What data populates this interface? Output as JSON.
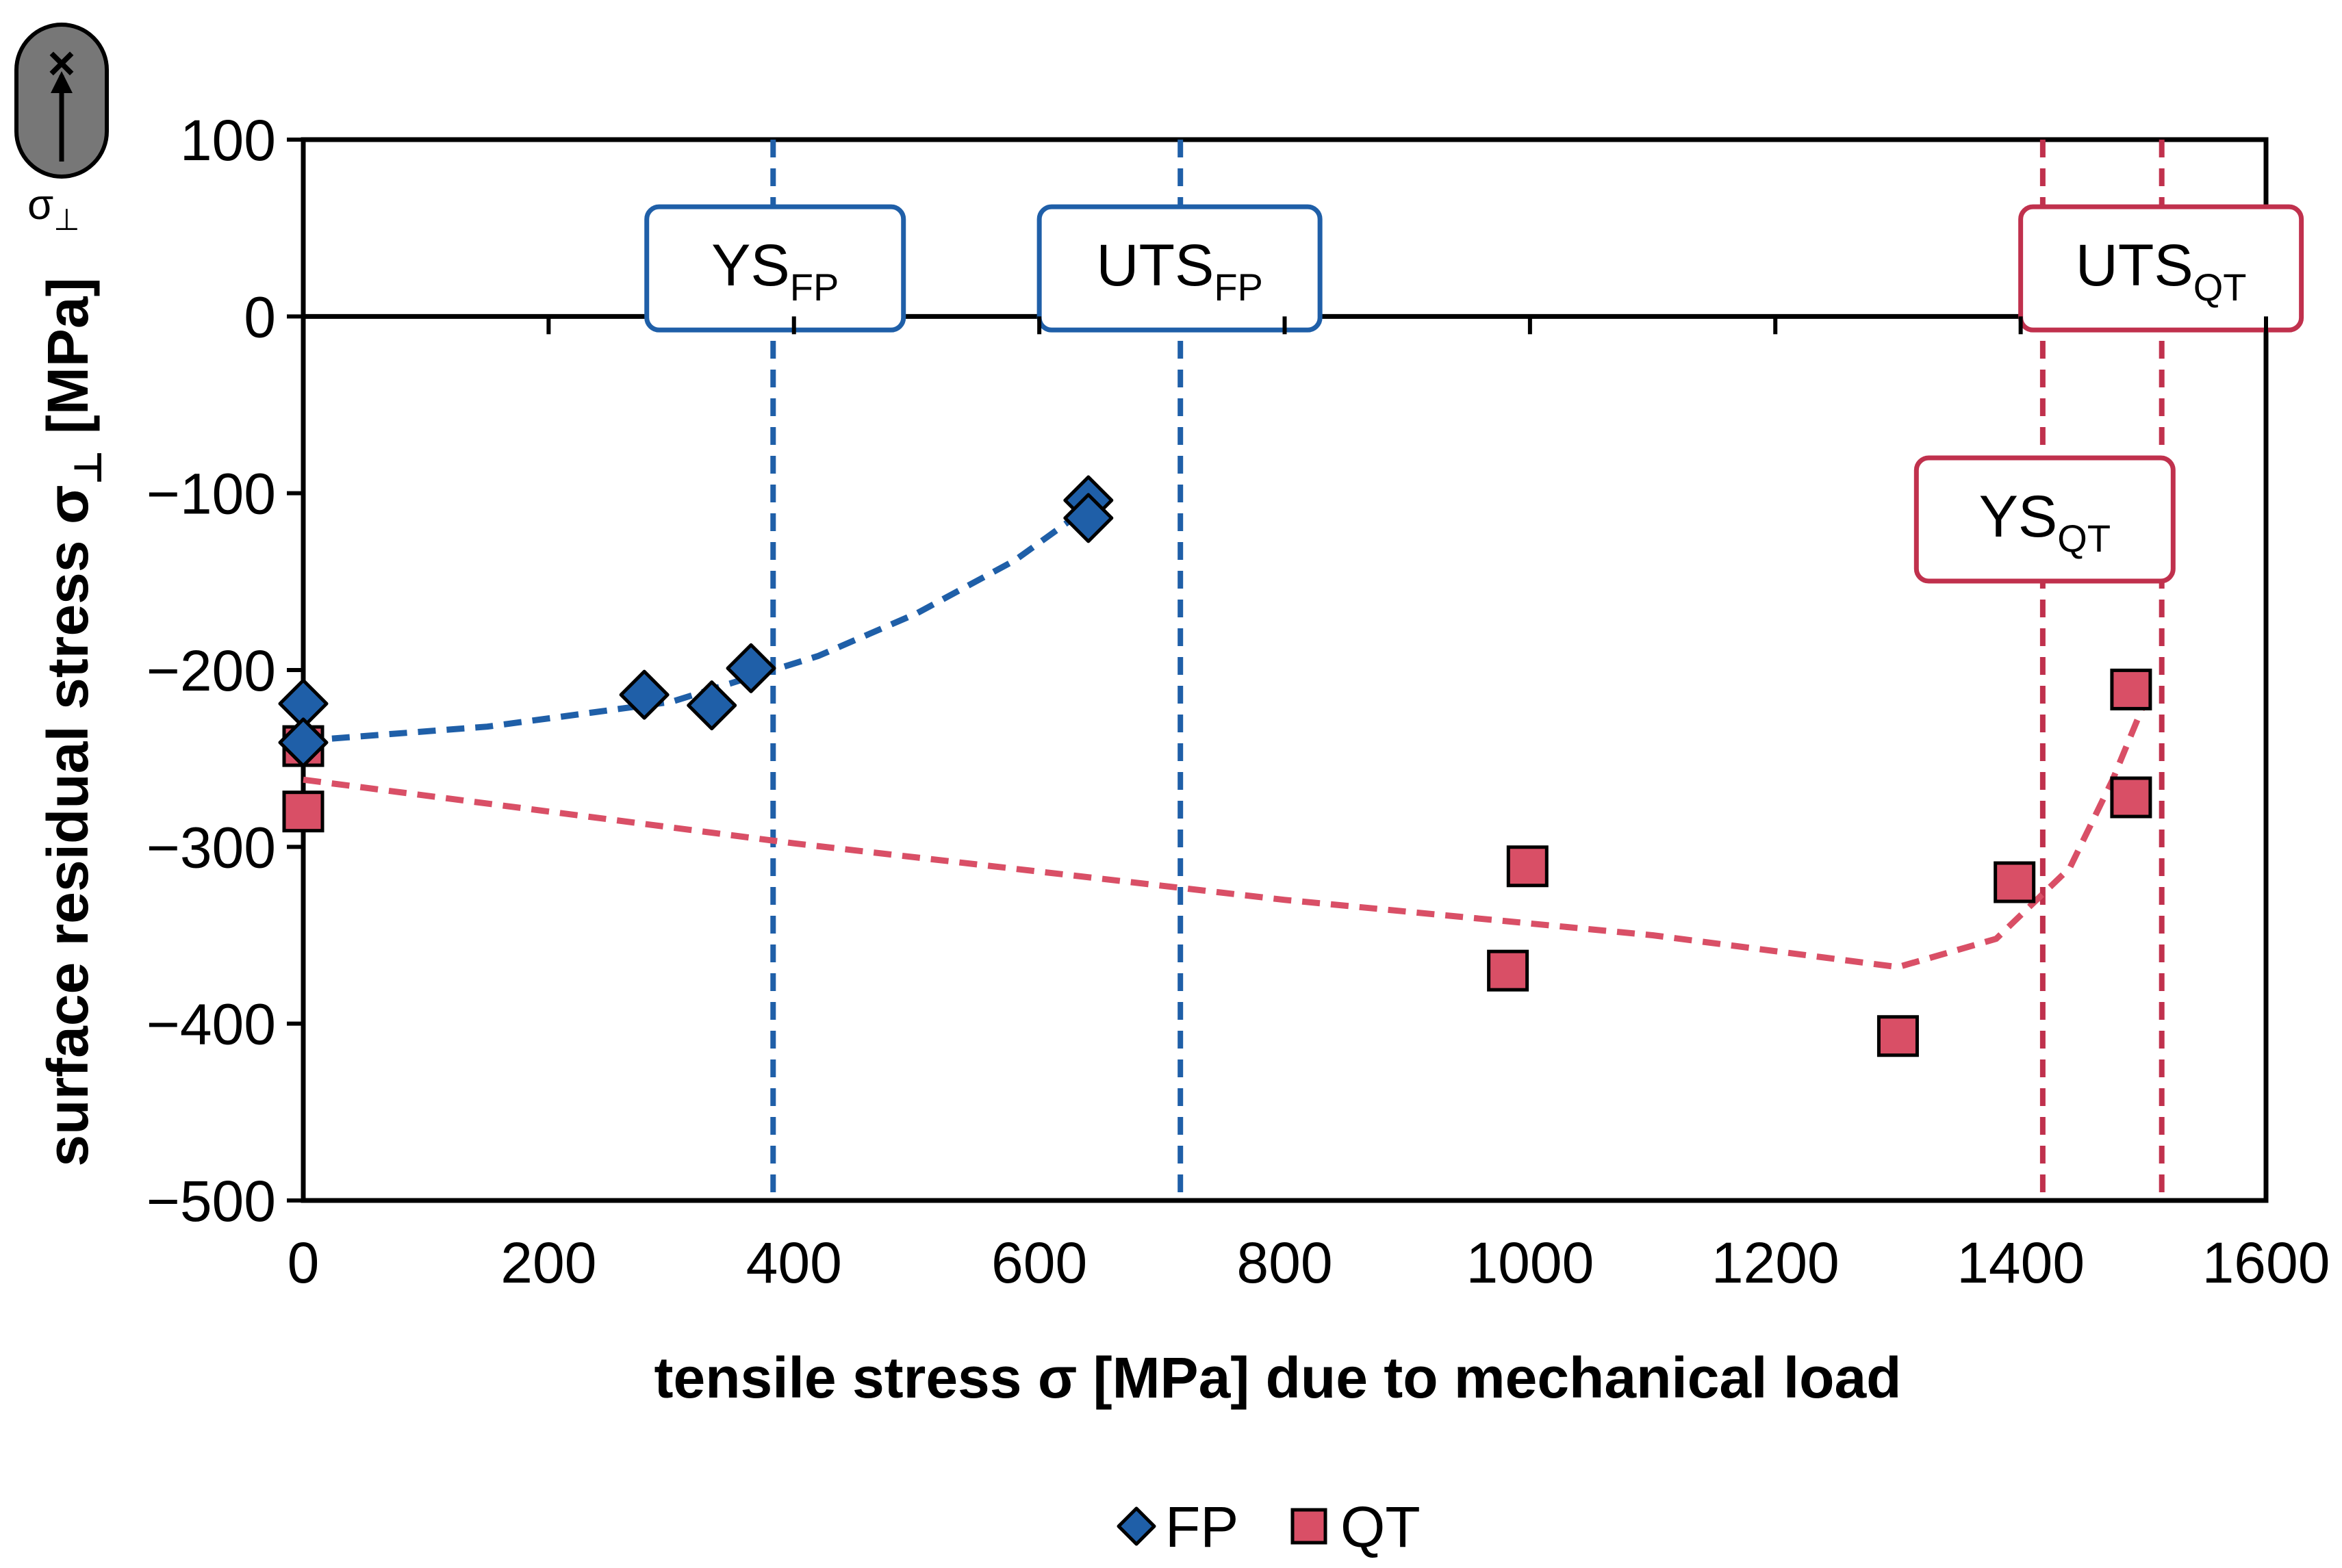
{
  "chart_data": {
    "type": "scatter",
    "xlabel": "tensile stress σ [MPa] due to mechanical load",
    "ylabel": "surface residual stress σ⊥ [MPa]",
    "ylabel_main": "surface residual stress σ",
    "ylabel_sub": "⊥",
    "ylabel_unit": " [MPa]",
    "xlim": [
      0,
      1600
    ],
    "ylim": [
      -500,
      100
    ],
    "x_ticks": [
      0,
      200,
      400,
      600,
      800,
      1000,
      1200,
      1400,
      1600
    ],
    "y_ticks": [
      100,
      0,
      -100,
      -200,
      -300,
      -400,
      -500
    ],
    "x_tick_labels": [
      "0",
      "200",
      "400",
      "600",
      "800",
      "1000",
      "1200",
      "1400",
      "1600"
    ],
    "y_tick_labels": [
      "100",
      "0",
      "−100",
      "−200",
      "−300",
      "−400",
      "−500"
    ],
    "legend_position": "bottom",
    "series": [
      {
        "name": "FP",
        "marker": "diamond",
        "color": "#1f5fa8",
        "points": [
          [
            0,
            -219
          ],
          [
            0,
            -241
          ],
          [
            278,
            -214
          ],
          [
            333,
            -220
          ],
          [
            365,
            -199
          ],
          [
            640,
            -104
          ],
          [
            640,
            -114
          ]
        ],
        "trend": [
          [
            0,
            -240
          ],
          [
            150,
            -232
          ],
          [
            300,
            -218
          ],
          [
            420,
            -192
          ],
          [
            500,
            -168
          ],
          [
            580,
            -138
          ],
          [
            640,
            -108
          ]
        ]
      },
      {
        "name": "QT",
        "marker": "square",
        "color": "#d94f66",
        "points": [
          [
            0,
            -243
          ],
          [
            0,
            -280
          ],
          [
            998,
            -311
          ],
          [
            982,
            -370
          ],
          [
            1300,
            -407
          ],
          [
            1395,
            -320
          ],
          [
            1490,
            -211
          ],
          [
            1490,
            -272
          ]
        ],
        "trend": [
          [
            0,
            -262
          ],
          [
            400,
            -298
          ],
          [
            800,
            -330
          ],
          [
            1100,
            -350
          ],
          [
            1300,
            -368
          ],
          [
            1380,
            -352
          ],
          [
            1440,
            -312
          ],
          [
            1475,
            -262
          ],
          [
            1500,
            -220
          ]
        ]
      }
    ],
    "reference_lines": [
      {
        "x": 383,
        "color": "#1f5fa8",
        "label_main": "YS",
        "label_sub": "FP",
        "label_x": 280,
        "label_y": 62
      },
      {
        "x": 715,
        "color": "#1f5fa8",
        "label_main": "UTS",
        "label_sub": "FP",
        "label_x": 600,
        "label_y": 62
      },
      {
        "x": 1418,
        "color": "#c0314d",
        "label_main": "YS",
        "label_sub": "QT",
        "label_x": 1315,
        "label_y": -80
      },
      {
        "x": 1515,
        "color": "#c0314d",
        "label_main": "UTS",
        "label_sub": "QT",
        "label_x": 1400,
        "label_y": 62
      }
    ],
    "corner_icon": {
      "symbol": "×",
      "label": "σ⊥",
      "label_main": "σ",
      "label_sub": "⊥"
    }
  }
}
